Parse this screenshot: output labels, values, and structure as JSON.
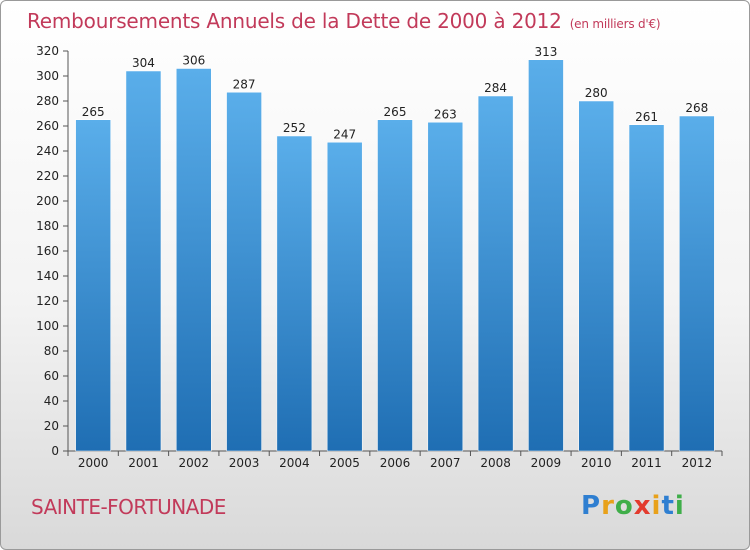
{
  "title": "Remboursements Annuels de la Dette de 2000 à 2012",
  "unit_note": "(en milliers d'€)",
  "commune": "SAINTE-FORTUNADE",
  "logo": {
    "letters": [
      "P",
      "r",
      "o",
      "x",
      "i",
      "t",
      "i"
    ],
    "colors": [
      "#2f7fd1",
      "#e8a11a",
      "#3fae49",
      "#e33b2e",
      "#e8a11a",
      "#2f7fd1",
      "#3fae49"
    ]
  },
  "colors": {
    "bar_top": "#5aaeea",
    "bar_bottom": "#1f6eb3",
    "title": "#c23a5a"
  },
  "chart_data": {
    "type": "bar",
    "title": "Remboursements Annuels de la Dette de 2000 à 2012",
    "categories": [
      "2000",
      "2001",
      "2002",
      "2003",
      "2004",
      "2005",
      "2006",
      "2007",
      "2008",
      "2009",
      "2010",
      "2011",
      "2012"
    ],
    "values": [
      265,
      304,
      306,
      287,
      252,
      247,
      265,
      263,
      284,
      313,
      280,
      261,
      268
    ],
    "ylim": [
      0,
      320
    ],
    "ytick_step": 20,
    "grid": false
  }
}
